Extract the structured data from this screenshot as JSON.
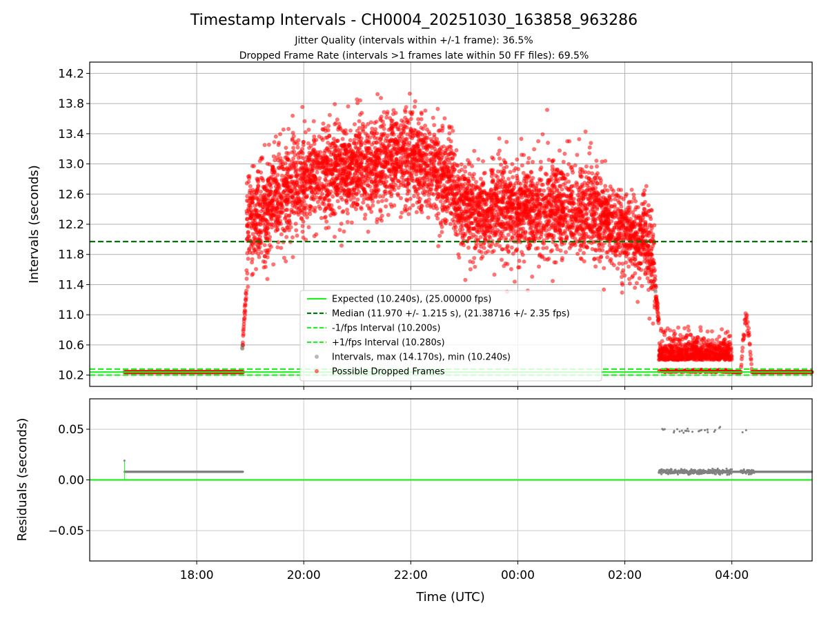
{
  "chart_data": {
    "type": "scatter",
    "title": "Timestamp Intervals - CH0004_20251030_163858_963286",
    "subtitle_lines": [
      "Jitter Quality (intervals within +/-1 frame): 36.5%",
      "Dropped Frame Rate (intervals >1 frames late within 50 FF files): 69.5%"
    ],
    "top_panel": {
      "ylabel": "Intervals (seconds)",
      "ylim": [
        10.05,
        14.35
      ],
      "y_ticks": [
        10.2,
        10.6,
        11.0,
        11.4,
        11.8,
        12.2,
        12.6,
        13.0,
        13.4,
        13.8,
        14.2
      ],
      "y_tick_labels": [
        "10.2",
        "10.6",
        "11.0",
        "11.4",
        "11.8",
        "12.2",
        "12.6",
        "13.0",
        "13.4",
        "13.8",
        "14.2"
      ],
      "grid": true,
      "legend_position": "lower-center",
      "reference_lines": [
        {
          "name": "Expected (10.240s), (25.00000 fps)",
          "value": 10.24,
          "style": "solid",
          "color": "#22ee22"
        },
        {
          "name": "Median (11.970 +/- 1.215 s), (21.38716 +/- 2.35 fps)",
          "value": 11.97,
          "style": "dashed",
          "color": "#007700"
        },
        {
          "name": "-1/fps Interval (10.200s)",
          "value": 10.2,
          "style": "dashed",
          "color": "#22ee22"
        },
        {
          "name": "+1/fps Interval (10.280s)",
          "value": 10.28,
          "style": "dashed",
          "color": "#22ee22"
        }
      ],
      "scatter_series": [
        {
          "name": "Intervals, max (14.170s), min (10.240s)",
          "color": "#808080"
        },
        {
          "name": "Possible Dropped Frames",
          "color": "#ff0000"
        }
      ]
    },
    "bottom_panel": {
      "ylabel": "Residuals (seconds)",
      "ylim": [
        -0.08,
        0.08
      ],
      "y_ticks": [
        -0.05,
        0.0,
        0.05
      ],
      "y_tick_labels": [
        "−0.05",
        "0.00",
        "0.05"
      ],
      "zero_line_color": "#22ee22",
      "residual_color": "#808080",
      "grid": true
    },
    "x_axis": {
      "xlabel": "Time (UTC)",
      "x_start": "16:00",
      "x_end": "05:30 (+1 day)",
      "tick_labels": [
        "18:00",
        "20:00",
        "22:00",
        "00:00",
        "02:00",
        "04:00"
      ]
    },
    "segments": [
      {
        "start": "16:39",
        "end": "18:52",
        "kind": "baseline",
        "residual": 0.008
      },
      {
        "start": "18:51",
        "end": "18:56",
        "kind": "rising",
        "from": 10.5,
        "to": 11.45
      },
      {
        "start": "18:56",
        "end": "20:00",
        "kind": "dropped",
        "center_from": 12.2,
        "center_to": 12.8,
        "spread": 0.32
      },
      {
        "start": "20:00",
        "end": "22:00",
        "kind": "dropped",
        "center_from": 12.8,
        "center_to": 13.1,
        "spread": 0.3
      },
      {
        "start": "22:00",
        "end": "22:50",
        "kind": "dropped",
        "center_from": 13.1,
        "center_to": 12.7,
        "spread": 0.3
      },
      {
        "start": "22:50",
        "end": "23:30",
        "kind": "dropped",
        "center_from": 12.5,
        "center_to": 12.3,
        "spread": 0.28
      },
      {
        "start": "23:30",
        "end": "01:30",
        "kind": "dropped",
        "center_from": 12.4,
        "center_to": 12.4,
        "spread": 0.3
      },
      {
        "start": "01:30",
        "end": "02:20",
        "kind": "dropped",
        "center_from": 12.3,
        "center_to": 11.95,
        "spread": 0.25
      },
      {
        "start": "02:20",
        "end": "02:34",
        "kind": "dropped",
        "center_from": 12.2,
        "center_to": 11.6,
        "spread": 0.3
      },
      {
        "start": "02:34",
        "end": "02:38",
        "kind": "falling",
        "from": 11.4,
        "to": 10.9
      },
      {
        "start": "02:38",
        "end": "04:00",
        "kind": "low",
        "center": 10.4,
        "spread": 0.13,
        "residual": 0.008,
        "outlier_residual": 0.049
      },
      {
        "start": "04:00",
        "end": "04:10",
        "kind": "baseline",
        "residual": 0.008
      },
      {
        "start": "04:10",
        "end": "04:25",
        "kind": "bump",
        "peak": 11.0
      },
      {
        "start": "04:25",
        "end": "05:30",
        "kind": "baseline",
        "residual": 0.008
      }
    ],
    "extremes": {
      "max": 14.17,
      "min": 10.24
    }
  }
}
